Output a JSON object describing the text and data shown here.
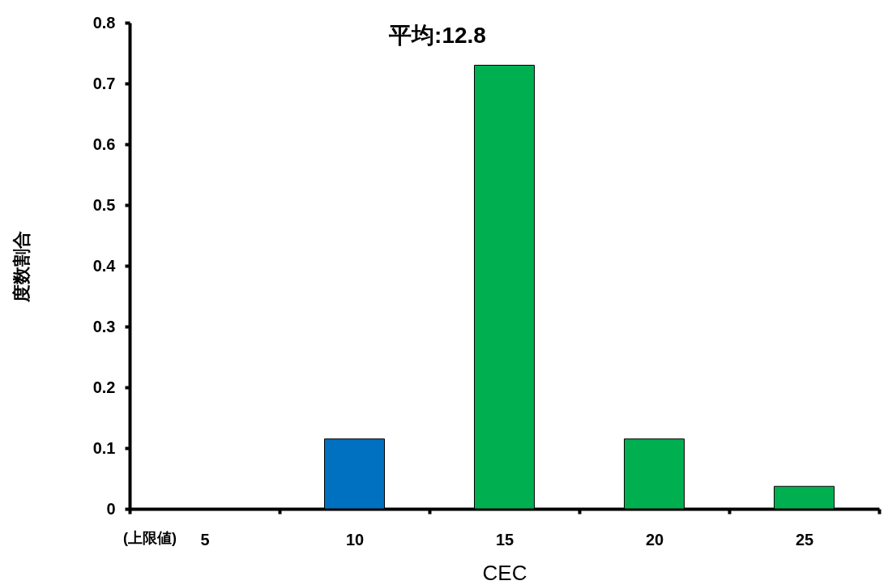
{
  "chart_data": {
    "type": "bar",
    "xlabel": "CEC",
    "ylabel": "度数割合",
    "categories": [
      "5",
      "10",
      "15",
      "20",
      "25"
    ],
    "values": [
      null,
      0.115,
      0.73,
      0.115,
      0.037
    ],
    "colors": [
      null,
      "#0070c0",
      "#00b050",
      "#00b050",
      "#00b050"
    ],
    "ylim": [
      0,
      0.8
    ],
    "yticks": [
      0,
      0.1,
      0.2,
      0.3,
      0.4,
      0.5,
      0.6,
      0.7,
      0.8
    ],
    "annotations": [
      "平均:12.8",
      "(上限値)"
    ],
    "grid": false,
    "legend": false
  }
}
